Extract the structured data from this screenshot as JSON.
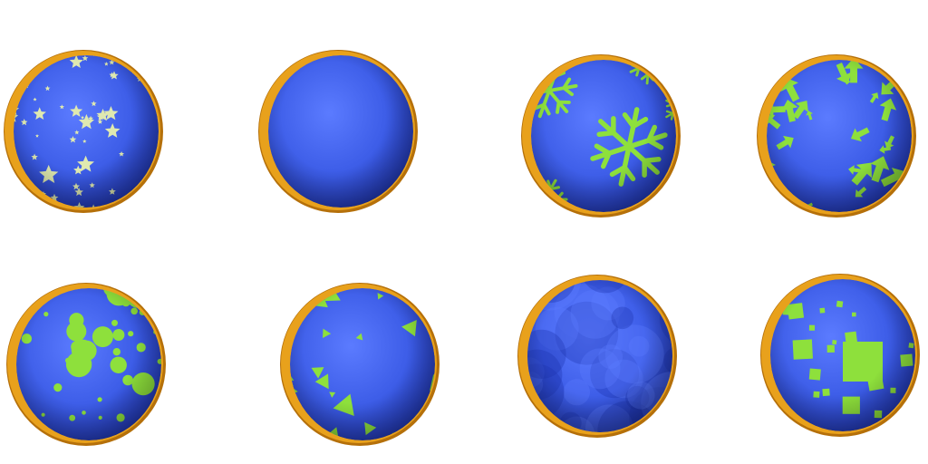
{
  "colors": {
    "background": "#ffffff",
    "sphere_base": "#3b5be6",
    "sphere_dark": "#1e33b0",
    "sphere_light": "#5b7bff",
    "rim": "#e8a11c",
    "rim_dark": "#b5700a",
    "pattern_green": "#8ee03c",
    "star_pale": "#dfe9b0"
  },
  "balls": [
    {
      "pattern": "stars"
    },
    {
      "pattern": "plain"
    },
    {
      "pattern": "snowflakes"
    },
    {
      "pattern": "arrows"
    },
    {
      "pattern": "dots"
    },
    {
      "pattern": "triangles"
    },
    {
      "pattern": "mottled"
    },
    {
      "pattern": "squares"
    }
  ]
}
